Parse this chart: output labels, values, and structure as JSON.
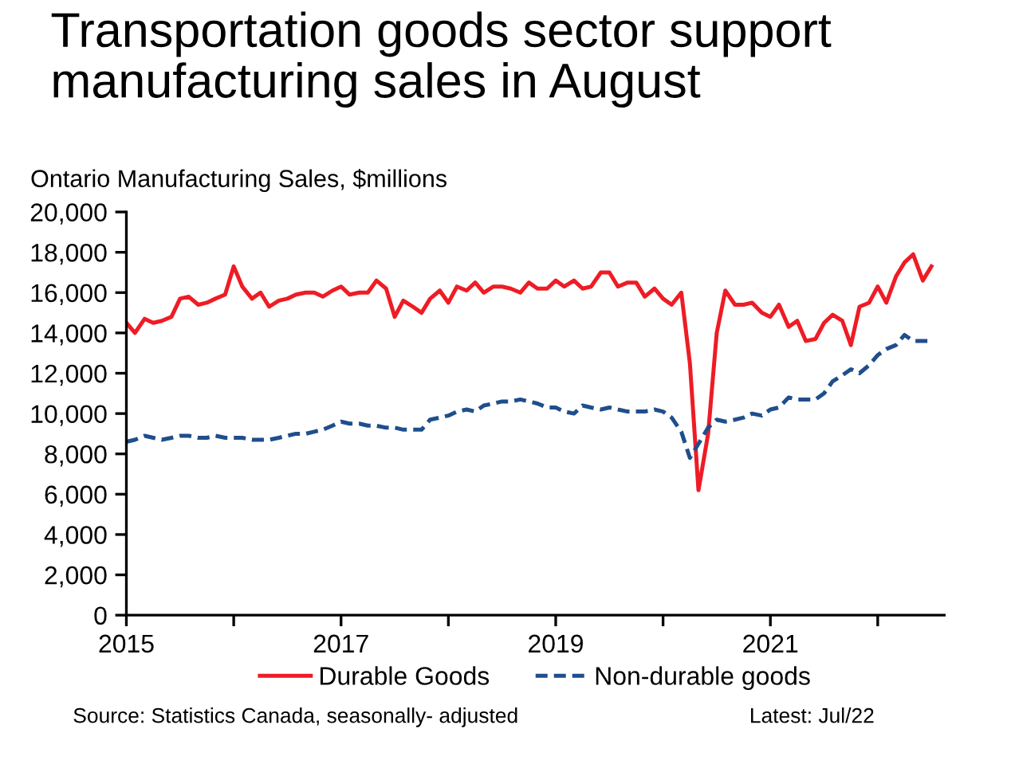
{
  "chart_data": {
    "type": "line",
    "title": "Transportation goods sector support\nmanufacturing sales in August",
    "ylabel": "Ontario Manufacturing Sales, $millions",
    "x": [
      2015.0,
      2015.08,
      2015.17,
      2015.25,
      2015.33,
      2015.42,
      2015.5,
      2015.58,
      2015.67,
      2015.75,
      2015.83,
      2015.92,
      2016.0,
      2016.08,
      2016.17,
      2016.25,
      2016.33,
      2016.42,
      2016.5,
      2016.58,
      2016.67,
      2016.75,
      2016.83,
      2016.92,
      2017.0,
      2017.08,
      2017.17,
      2017.25,
      2017.33,
      2017.42,
      2017.5,
      2017.58,
      2017.67,
      2017.75,
      2017.83,
      2017.92,
      2018.0,
      2018.08,
      2018.17,
      2018.25,
      2018.33,
      2018.42,
      2018.5,
      2018.58,
      2018.67,
      2018.75,
      2018.83,
      2018.92,
      2019.0,
      2019.08,
      2019.17,
      2019.25,
      2019.33,
      2019.42,
      2019.5,
      2019.58,
      2019.67,
      2019.75,
      2019.83,
      2019.92,
      2020.0,
      2020.08,
      2020.17,
      2020.25,
      2020.33,
      2020.42,
      2020.5,
      2020.58,
      2020.67,
      2020.75,
      2020.83,
      2020.92,
      2021.0,
      2021.08,
      2021.17,
      2021.25,
      2021.33,
      2021.42,
      2021.5,
      2021.58,
      2021.67,
      2021.75,
      2021.83,
      2021.92,
      2022.0,
      2022.08,
      2022.17,
      2022.25,
      2022.33,
      2022.42,
      2022.5
    ],
    "series": [
      {
        "name": "Durable Goods",
        "color": "#ee1c25",
        "line_style": "solid",
        "values": [
          14500,
          14000,
          14700,
          14500,
          14600,
          14800,
          15700,
          15800,
          15400,
          15500,
          15700,
          15900,
          17300,
          16300,
          15700,
          16000,
          15300,
          15600,
          15700,
          15900,
          16000,
          16000,
          15800,
          16100,
          16300,
          15900,
          16000,
          16000,
          16600,
          16200,
          14800,
          15600,
          15300,
          15000,
          15700,
          16100,
          15500,
          16300,
          16100,
          16500,
          16000,
          16300,
          16300,
          16200,
          16000,
          16500,
          16200,
          16200,
          16600,
          16300,
          16600,
          16200,
          16300,
          17000,
          17000,
          16300,
          16500,
          16500,
          15800,
          16200,
          15700,
          15400,
          16000,
          12500,
          6200,
          9000,
          14000,
          16100,
          15400,
          15400,
          15500,
          15000,
          14800,
          15400,
          14300,
          14600,
          13600,
          13700,
          14500,
          14900,
          14600,
          13400,
          15300,
          15500,
          16300,
          15500,
          16800,
          17500,
          17900,
          16600,
          17300
        ]
      },
      {
        "name": "Non-durable goods",
        "color": "#1f4e8c",
        "line_style": "dashed",
        "values": [
          8600,
          8700,
          8900,
          8800,
          8700,
          8800,
          8900,
          8900,
          8800,
          8800,
          8900,
          8800,
          8800,
          8800,
          8700,
          8700,
          8700,
          8800,
          8900,
          9000,
          9000,
          9100,
          9200,
          9400,
          9600,
          9500,
          9500,
          9400,
          9400,
          9300,
          9300,
          9200,
          9200,
          9200,
          9700,
          9800,
          9900,
          10100,
          10200,
          10100,
          10400,
          10500,
          10600,
          10600,
          10700,
          10600,
          10500,
          10300,
          10300,
          10100,
          10000,
          10400,
          10300,
          10200,
          10300,
          10200,
          10100,
          10100,
          10100,
          10200,
          10100,
          9800,
          9100,
          7800,
          8500,
          9300,
          9700,
          9600,
          9700,
          9800,
          10000,
          9900,
          10200,
          10300,
          10800,
          10700,
          10700,
          10700,
          11000,
          11600,
          11900,
          12200,
          12000,
          12400,
          12900,
          13200,
          13400,
          13900,
          13600,
          13600,
          13600
        ]
      }
    ],
    "xlim": [
      2015,
      2022.62
    ],
    "xticks": [
      2015,
      {
        "value": 2016,
        "label": null
      },
      2017,
      {
        "value": 2018,
        "label": null
      },
      2019,
      {
        "value": 2020,
        "label": null
      },
      2021,
      {
        "value": 2022,
        "label": null
      }
    ],
    "ylim": [
      0,
      20000
    ],
    "yticks": [
      {
        "value": 0,
        "label": "0"
      },
      {
        "value": 2000,
        "label": "2,000"
      },
      {
        "value": 4000,
        "label": "4,000"
      },
      {
        "value": 6000,
        "label": "6,000"
      },
      {
        "value": 8000,
        "label": "8,000"
      },
      {
        "value": 10000,
        "label": "10,000"
      },
      {
        "value": 12000,
        "label": "12,000"
      },
      {
        "value": 14000,
        "label": "14,000"
      },
      {
        "value": 16000,
        "label": "16,000"
      },
      {
        "value": 18000,
        "label": "18,000"
      },
      {
        "value": 20000,
        "label": "20,000"
      }
    ],
    "grid": false,
    "legend": "bottom",
    "annotations": [
      "Source: Statistics Canada, seasonally- adjusted",
      "Latest: Jul/22"
    ]
  }
}
